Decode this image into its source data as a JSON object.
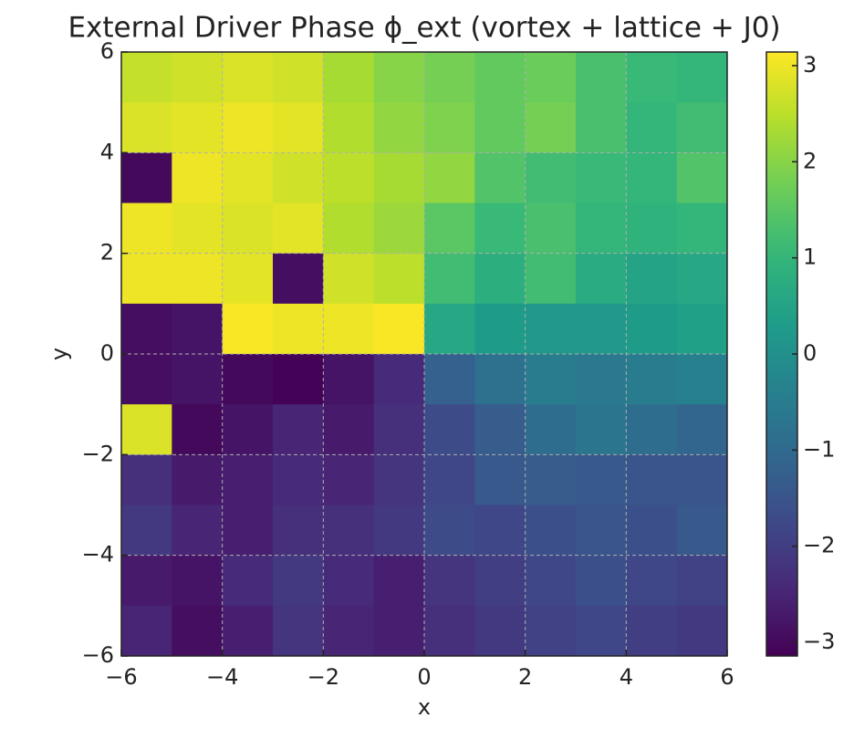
{
  "chart_data": {
    "type": "heatmap",
    "title": "External Driver Phase ϕ_ext (vortex + lattice + J0)",
    "x_label": "x",
    "y_label": "y",
    "x": [
      -5.5,
      -4.5,
      -3.5,
      -2.5,
      -1.5,
      -0.5,
      0.5,
      1.5,
      2.5,
      3.5,
      4.5,
      5.5
    ],
    "y": [
      5.5,
      4.5,
      3.5,
      2.5,
      1.5,
      0.5,
      -0.5,
      -1.5,
      -2.5,
      -3.5,
      -4.5,
      -5.5
    ],
    "z": [
      [
        2.6,
        2.7,
        2.8,
        2.7,
        2.3,
        2.0,
        1.8,
        1.6,
        1.7,
        1.3,
        1.1,
        1.0
      ],
      [
        2.8,
        2.9,
        3.0,
        2.9,
        2.4,
        2.1,
        1.9,
        1.6,
        1.8,
        1.3,
        1.0,
        1.2
      ],
      [
        -3.0,
        3.0,
        2.9,
        2.7,
        2.5,
        2.3,
        2.1,
        1.4,
        1.2,
        1.1,
        1.0,
        1.4
      ],
      [
        3.0,
        2.9,
        2.8,
        2.9,
        2.4,
        2.2,
        1.5,
        1.1,
        1.3,
        1.0,
        0.9,
        1.0
      ],
      [
        3.0,
        3.0,
        2.9,
        -2.9,
        2.7,
        2.5,
        1.2,
        0.8,
        1.2,
        0.7,
        0.5,
        0.6
      ],
      [
        -2.9,
        -2.8,
        3.1,
        3.0,
        3.0,
        3.1,
        0.6,
        0.3,
        0.2,
        0.2,
        0.3,
        0.4
      ],
      [
        -2.9,
        -2.8,
        -3.0,
        -3.1,
        -2.8,
        -2.4,
        -1.2,
        -0.8,
        -0.5,
        -0.6,
        -0.5,
        -0.4
      ],
      [
        2.8,
        -3.0,
        -2.8,
        -2.5,
        -2.7,
        -2.3,
        -1.7,
        -1.3,
        -0.9,
        -0.7,
        -0.9,
        -1.1
      ],
      [
        -2.3,
        -2.7,
        -2.6,
        -2.4,
        -2.5,
        -2.2,
        -1.8,
        -1.4,
        -1.3,
        -1.4,
        -1.5,
        -1.5
      ],
      [
        -2.1,
        -2.5,
        -2.6,
        -2.3,
        -2.3,
        -2.1,
        -1.7,
        -1.8,
        -1.6,
        -1.5,
        -1.6,
        -1.4
      ],
      [
        -2.7,
        -2.8,
        -2.4,
        -2.1,
        -2.4,
        -2.6,
        -2.2,
        -2.0,
        -1.8,
        -1.6,
        -1.8,
        -1.9
      ],
      [
        -2.5,
        -2.9,
        -2.6,
        -2.2,
        -2.5,
        -2.6,
        -2.3,
        -2.1,
        -1.9,
        -1.8,
        -2.0,
        -2.1
      ]
    ],
    "xlim": [
      -6,
      6
    ],
    "ylim": [
      -6,
      6
    ],
    "xticks": [
      {
        "value": -6,
        "label": "−6"
      },
      {
        "value": -4,
        "label": "−4"
      },
      {
        "value": -2,
        "label": "−2"
      },
      0,
      2,
      4,
      6
    ],
    "yticks": [
      {
        "value": -6,
        "label": "−6"
      },
      {
        "value": -4,
        "label": "−4"
      },
      {
        "value": -2,
        "label": "−2"
      },
      0,
      2,
      4,
      6
    ],
    "clim": [
      -3.14159,
      3.14159
    ],
    "cticks": [
      {
        "value": -3,
        "label": "−3"
      },
      {
        "value": -2,
        "label": "−2"
      },
      {
        "value": -1,
        "label": "−1"
      },
      0,
      1,
      2,
      3
    ],
    "colormap": "viridis",
    "grid": true
  }
}
